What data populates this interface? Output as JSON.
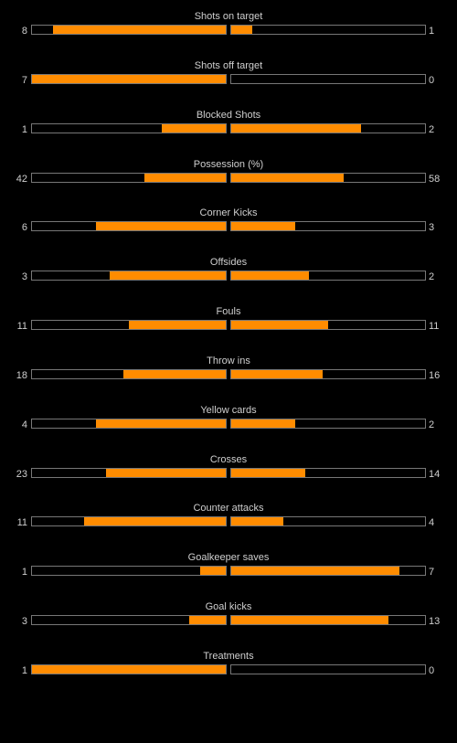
{
  "colors": {
    "fill": "#ff8c00",
    "border": "#777777",
    "background": "#000000",
    "text": "#cfcfcf"
  },
  "stats": [
    {
      "label": "Shots on target",
      "home": "8",
      "away": "1",
      "home_fill": 0.89,
      "away_fill": 0.11
    },
    {
      "label": "Shots off target",
      "home": "7",
      "away": "0",
      "home_fill": 1.0,
      "away_fill": 0.0
    },
    {
      "label": "Blocked Shots",
      "home": "1",
      "away": "2",
      "home_fill": 0.33,
      "away_fill": 0.67
    },
    {
      "label": "Possession (%)",
      "home": "42",
      "away": "58",
      "home_fill": 0.42,
      "away_fill": 0.58
    },
    {
      "label": "Corner Kicks",
      "home": "6",
      "away": "3",
      "home_fill": 0.67,
      "away_fill": 0.33
    },
    {
      "label": "Offsides",
      "home": "3",
      "away": "2",
      "home_fill": 0.6,
      "away_fill": 0.4
    },
    {
      "label": "Fouls",
      "home": "11",
      "away": "11",
      "home_fill": 0.5,
      "away_fill": 0.5
    },
    {
      "label": "Throw ins",
      "home": "18",
      "away": "16",
      "home_fill": 0.53,
      "away_fill": 0.47
    },
    {
      "label": "Yellow cards",
      "home": "4",
      "away": "2",
      "home_fill": 0.67,
      "away_fill": 0.33
    },
    {
      "label": "Crosses",
      "home": "23",
      "away": "14",
      "home_fill": 0.62,
      "away_fill": 0.38
    },
    {
      "label": "Counter attacks",
      "home": "11",
      "away": "4",
      "home_fill": 0.73,
      "away_fill": 0.27
    },
    {
      "label": "Goalkeeper saves",
      "home": "1",
      "away": "7",
      "home_fill": 0.13,
      "away_fill": 0.87
    },
    {
      "label": "Goal kicks",
      "home": "3",
      "away": "13",
      "home_fill": 0.19,
      "away_fill": 0.81
    },
    {
      "label": "Treatments",
      "home": "1",
      "away": "0",
      "home_fill": 1.0,
      "away_fill": 0.0
    }
  ]
}
